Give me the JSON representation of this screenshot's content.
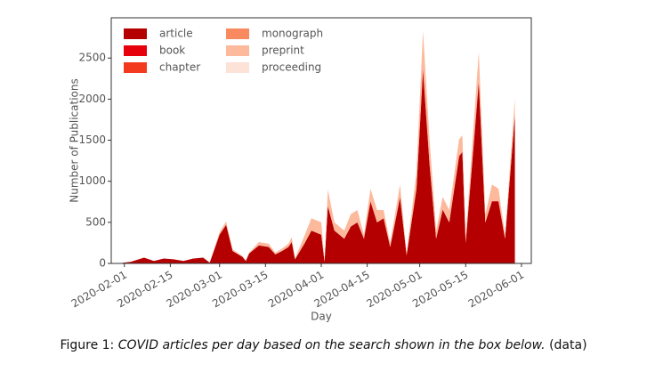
{
  "chart_data": {
    "type": "stacked_area",
    "y_label": "Number of Publications",
    "x_label": "Day",
    "xlim": [
      "2020-01-28",
      "2020-06-04"
    ],
    "xticks": [
      "2020-02-01",
      "2020-02-15",
      "2020-03-01",
      "2020-03-15",
      "2020-04-01",
      "2020-04-15",
      "2020-05-01",
      "2020-05-15",
      "2020-06-01"
    ],
    "ylim": [
      0,
      2990
    ],
    "yticks": [
      0,
      500,
      1000,
      1500,
      2000,
      2500
    ],
    "legend": "upper left",
    "x": [
      "2020-01-30",
      "2020-02-03",
      "2020-02-07",
      "2020-02-10",
      "2020-02-13",
      "2020-02-16",
      "2020-02-19",
      "2020-02-22",
      "2020-02-25",
      "2020-02-27",
      "2020-03-01",
      "2020-03-03",
      "2020-03-05",
      "2020-03-08",
      "2020-03-09",
      "2020-03-10",
      "2020-03-13",
      "2020-03-16",
      "2020-03-18",
      "2020-03-20",
      "2020-03-22",
      "2020-03-23",
      "2020-03-24",
      "2020-03-27",
      "2020-03-29",
      "2020-04-01",
      "2020-04-02",
      "2020-04-03",
      "2020-04-05",
      "2020-04-08",
      "2020-04-10",
      "2020-04-12",
      "2020-04-14",
      "2020-04-16",
      "2020-04-18",
      "2020-04-20",
      "2020-04-22",
      "2020-04-25",
      "2020-04-27",
      "2020-04-30",
      "2020-05-02",
      "2020-05-04",
      "2020-05-06",
      "2020-05-08",
      "2020-05-10",
      "2020-05-13",
      "2020-05-14",
      "2020-05-15",
      "2020-05-19",
      "2020-05-21",
      "2020-05-23",
      "2020-05-25",
      "2020-05-27",
      "2020-05-30"
    ],
    "series": [
      {
        "name": "article",
        "color": "#b40000",
        "values": [
          0,
          20,
          70,
          30,
          60,
          50,
          30,
          60,
          70,
          10,
          350,
          470,
          150,
          80,
          30,
          120,
          220,
          200,
          110,
          150,
          200,
          260,
          50,
          250,
          400,
          350,
          20,
          700,
          400,
          300,
          450,
          500,
          300,
          750,
          500,
          550,
          200,
          800,
          100,
          900,
          2350,
          1200,
          300,
          650,
          500,
          1300,
          1350,
          250,
          2200,
          500,
          750,
          750,
          300,
          1800
        ]
      },
      {
        "name": "book",
        "color": "#e5000c",
        "values": [
          0,
          0,
          0,
          0,
          0,
          0,
          0,
          0,
          0,
          0,
          0,
          0,
          0,
          0,
          0,
          0,
          0,
          0,
          0,
          0,
          0,
          0,
          0,
          0,
          0,
          0,
          0,
          0,
          0,
          0,
          0,
          0,
          0,
          10,
          0,
          0,
          0,
          10,
          0,
          10,
          20,
          10,
          0,
          10,
          0,
          10,
          10,
          0,
          20,
          0,
          10,
          10,
          0,
          10
        ]
      },
      {
        "name": "chapter",
        "color": "#f43a1e",
        "values": [
          0,
          0,
          0,
          0,
          0,
          0,
          0,
          0,
          0,
          0,
          0,
          0,
          0,
          0,
          0,
          0,
          0,
          0,
          0,
          0,
          0,
          0,
          0,
          0,
          0,
          0,
          0,
          0,
          0,
          0,
          0,
          0,
          0,
          0,
          0,
          0,
          0,
          0,
          0,
          0,
          10,
          0,
          0,
          0,
          0,
          0,
          0,
          0,
          10,
          0,
          0,
          0,
          0,
          0
        ]
      },
      {
        "name": "monograph",
        "color": "#f98a60",
        "values": [
          0,
          0,
          0,
          0,
          0,
          0,
          0,
          0,
          0,
          0,
          0,
          0,
          0,
          0,
          0,
          0,
          0,
          0,
          0,
          0,
          0,
          0,
          0,
          0,
          0,
          0,
          0,
          0,
          0,
          0,
          0,
          0,
          0,
          0,
          0,
          0,
          0,
          0,
          0,
          0,
          0,
          0,
          0,
          0,
          0,
          0,
          0,
          0,
          0,
          0,
          0,
          0,
          0,
          0
        ]
      },
      {
        "name": "preprint",
        "color": "#fcb99c",
        "values": [
          0,
          0,
          0,
          0,
          0,
          0,
          0,
          0,
          0,
          0,
          30,
          40,
          20,
          10,
          5,
          10,
          40,
          40,
          20,
          30,
          40,
          60,
          10,
          100,
          150,
          150,
          10,
          200,
          100,
          100,
          150,
          150,
          50,
          150,
          150,
          100,
          50,
          150,
          20,
          200,
          450,
          300,
          100,
          150,
          150,
          200,
          200,
          50,
          350,
          100,
          200,
          150,
          50,
          200
        ]
      },
      {
        "name": "proceeding",
        "color": "#fde2d8",
        "values": [
          0,
          0,
          0,
          0,
          0,
          0,
          0,
          0,
          0,
          0,
          0,
          0,
          0,
          0,
          0,
          0,
          0,
          0,
          0,
          0,
          0,
          0,
          0,
          0,
          0,
          0,
          0,
          0,
          0,
          0,
          0,
          0,
          0,
          0,
          0,
          0,
          0,
          0,
          0,
          0,
          0,
          0,
          0,
          0,
          0,
          0,
          0,
          0,
          0,
          0,
          0,
          0,
          0,
          0
        ]
      }
    ]
  },
  "caption": {
    "prefix": "Figure 1:",
    "italic": "COVID articles per day based on the search shown in the box below.",
    "suffix": "(data)"
  }
}
